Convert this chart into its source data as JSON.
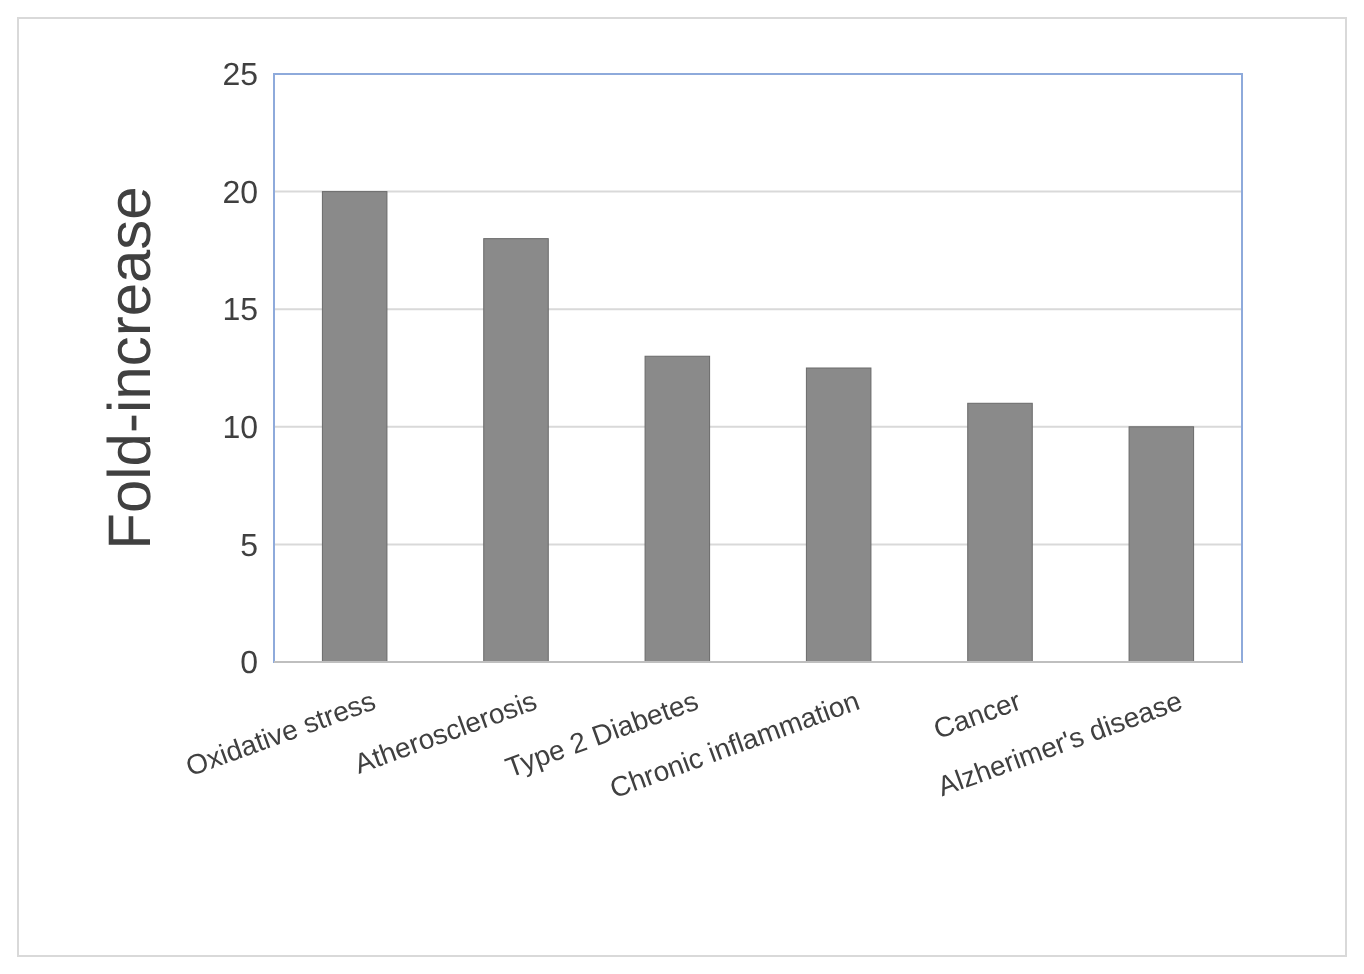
{
  "chart_data": {
    "type": "bar",
    "ylabel": "Fold-increase",
    "categories": [
      "Oxidative stress",
      "Atherosclerosis",
      "Type 2 Diabetes",
      "Chronic inflammation",
      "Cancer",
      "Alzherimer's disease"
    ],
    "values": [
      20,
      18,
      13,
      12.5,
      11,
      10
    ],
    "color": "#8a8a8a",
    "ylim": [
      0,
      25
    ],
    "yticks": [
      0,
      5,
      10,
      15,
      20,
      25
    ],
    "grid": "y"
  }
}
